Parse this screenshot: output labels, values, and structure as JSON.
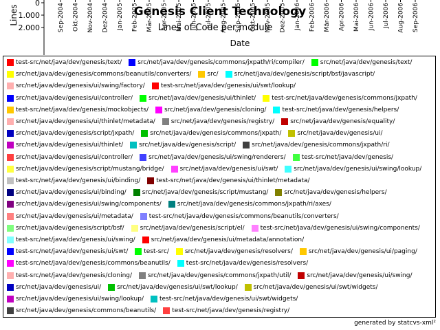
{
  "chart_data": {
    "type": "line",
    "title": "Genesis Client Technology",
    "subtitle": "Lines of Code per module",
    "xlabel": "Date",
    "ylabel": "Lines",
    "y_ticks": [
      "0",
      "1.000",
      "2.000"
    ],
    "ylim": [
      0,
      2000
    ],
    "categories": [
      "Sep-2004",
      "Okt-2004",
      "Nov-2004",
      "Dez-2004",
      "Jan-2005",
      "Feb-2005",
      "Mär-2005",
      "Apr-2005",
      "Mai-2005",
      "Jun-2005",
      "Jul-2005",
      "Aug-2005",
      "Sep-2005",
      "Okt-2005",
      "Nov-2005",
      "Dez-2005",
      "Jan-2006",
      "Feb-2006",
      "Mär-2006",
      "Apr-2006",
      "Mai-2006",
      "Jun-2006",
      "Jul-2006",
      "Aug-2006",
      "Sep-2006"
    ],
    "legend_position": "bottom",
    "series": [
      {
        "name": "test-src/net/java/dev/genesis/text/",
        "color": "#ff0000"
      },
      {
        "name": "src/net/java/dev/genesis/commons/jxpath/ri/compiler/",
        "color": "#0000ff"
      },
      {
        "name": "src/net/java/dev/genesis/text/",
        "color": "#00ff00"
      },
      {
        "name": "src/net/java/dev/genesis/commons/beanutils/converters/",
        "color": "#ffff00"
      },
      {
        "name": "src/",
        "color": "#ffc800"
      },
      {
        "name": "src/net/java/dev/genesis/script/bsf/javascript/",
        "color": "#00ffff"
      },
      {
        "name": "src/net/java/dev/genesis/ui/swing/factory/",
        "color": "#ffafaf"
      },
      {
        "name": "test-src/net/java/dev/genesis/ui/swt/lookup/",
        "color": "#ff0000"
      },
      {
        "name": "src/net/java/dev/genesis/ui/controller/",
        "color": "#0000ff"
      },
      {
        "name": "src/net/java/dev/genesis/ui/thinlet/",
        "color": "#00ff00"
      },
      {
        "name": "test-src/net/java/dev/genesis/commons/jxpath/",
        "color": "#ffff00"
      },
      {
        "name": "test-src/net/java/dev/genesis/mockobjects/",
        "color": "#ffc800"
      },
      {
        "name": "src/net/java/dev/genesis/cloning/",
        "color": "#ff00ff"
      },
      {
        "name": "test-src/net/java/dev/genesis/helpers/",
        "color": "#00ffff"
      },
      {
        "name": "src/net/java/dev/genesis/ui/thinlet/metadata/",
        "color": "#ffafaf"
      },
      {
        "name": "src/net/java/dev/genesis/registry/",
        "color": "#808080"
      },
      {
        "name": "src/net/java/dev/genesis/equality/",
        "color": "#c00000"
      },
      {
        "name": "src/net/java/dev/genesis/script/jxpath/",
        "color": "#0000c0"
      },
      {
        "name": "src/net/java/dev/genesis/commons/jxpath/",
        "color": "#00c000"
      },
      {
        "name": "src/net/java/dev/genesis/ui/",
        "color": "#c0c000"
      },
      {
        "name": "src/net/java/dev/genesis/ui/thinlet/",
        "color": "#c000c0"
      },
      {
        "name": "src/net/java/dev/genesis/script/",
        "color": "#00c0c0"
      },
      {
        "name": "src/net/java/dev/genesis/commons/jxpath/ri/",
        "color": "#404040"
      },
      {
        "name": "src/net/java/dev/genesis/ui/controller/",
        "color": "#ff4040"
      },
      {
        "name": "src/net/java/dev/genesis/ui/swing/renderers/",
        "color": "#4040ff"
      },
      {
        "name": "test-src/net/java/dev/genesis/",
        "color": "#40ff40"
      },
      {
        "name": "src/net/java/dev/genesis/script/mustang/bridge/",
        "color": "#ffff40"
      },
      {
        "name": "src/net/java/dev/genesis/ui/swt/",
        "color": "#ff40ff"
      },
      {
        "name": "src/net/java/dev/genesis/ui/swing/lookup/",
        "color": "#40ffff"
      },
      {
        "name": "test-src/net/java/dev/genesis/ui/binding/",
        "color": "#c0c0c0"
      },
      {
        "name": "test-src/net/java/dev/genesis/ui/thinlet/metadata/",
        "color": "#800000"
      },
      {
        "name": "src/net/java/dev/genesis/ui/binding/",
        "color": "#000080"
      },
      {
        "name": "src/net/java/dev/genesis/script/mustang/",
        "color": "#008000"
      },
      {
        "name": "src/net/java/dev/genesis/helpers/",
        "color": "#808000"
      },
      {
        "name": "src/net/java/dev/genesis/ui/swing/components/",
        "color": "#800080"
      },
      {
        "name": "src/net/java/dev/genesis/commons/jxpath/ri/axes/",
        "color": "#008080"
      },
      {
        "name": "src/net/java/dev/genesis/ui/metadata/",
        "color": "#ff8080"
      },
      {
        "name": "test-src/net/java/dev/genesis/commons/beanutils/converters/",
        "color": "#8080ff"
      },
      {
        "name": "src/net/java/dev/genesis/script/bsf/",
        "color": "#80ff80"
      },
      {
        "name": "src/net/java/dev/genesis/script/el/",
        "color": "#ffff80"
      },
      {
        "name": "test-src/net/java/dev/genesis/ui/swing/components/",
        "color": "#ff80ff"
      },
      {
        "name": "test-src/net/java/dev/genesis/ui/swing/",
        "color": "#80ffff"
      },
      {
        "name": "src/net/java/dev/genesis/ui/metadata/annotation/",
        "color": "#ff0000"
      },
      {
        "name": "test-src/net/java/dev/genesis/ui/swt/",
        "color": "#0000ff"
      },
      {
        "name": "test-src/",
        "color": "#00ff00"
      },
      {
        "name": "src/net/java/dev/genesis/resolvers/",
        "color": "#ffff00"
      },
      {
        "name": "src/net/java/dev/genesis/ui/paging/",
        "color": "#ffc800"
      },
      {
        "name": "test-src/net/java/dev/genesis/commons/beanutils/",
        "color": "#ff00ff"
      },
      {
        "name": "test-src/net/java/dev/genesis/resolvers/",
        "color": "#00ffff"
      },
      {
        "name": "test-src/net/java/dev/genesis/cloning/",
        "color": "#ffafaf"
      },
      {
        "name": "src/net/java/dev/genesis/commons/jxpath/util/",
        "color": "#808080"
      },
      {
        "name": "src/net/java/dev/genesis/ui/swing/",
        "color": "#c00000"
      },
      {
        "name": "src/net/java/dev/genesis/ui/",
        "color": "#0000c0"
      },
      {
        "name": "src/net/java/dev/genesis/ui/swt/lookup/",
        "color": "#00c000"
      },
      {
        "name": "src/net/java/dev/genesis/ui/swt/widgets/",
        "color": "#c0c000"
      },
      {
        "name": "src/net/java/dev/genesis/ui/swing/lookup/",
        "color": "#c000c0"
      },
      {
        "name": "test-src/net/java/dev/genesis/ui/swt/widgets/",
        "color": "#00c0c0"
      },
      {
        "name": "src/net/java/dev/genesis/commons/beanutils/",
        "color": "#404040"
      },
      {
        "name": "test-src/net/java/dev/genesis/registry/",
        "color": "#ff4040"
      }
    ]
  },
  "footer": "generated by statcvs-xml²"
}
